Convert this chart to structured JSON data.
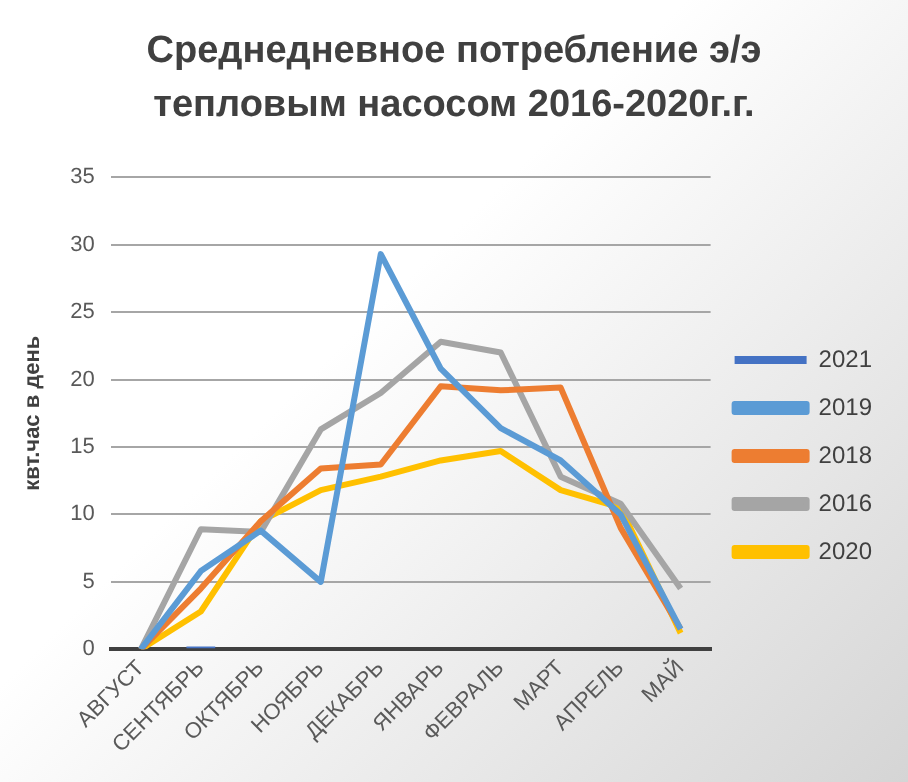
{
  "chart_data": {
    "type": "line",
    "title": "Среднедневное потребление э/э тепловым насосом 2016-2020г.г.",
    "ylabel": "квт.час в день",
    "categories": [
      "АВГУСТ",
      "СЕНТЯБРЬ",
      "ОКТЯБРЬ",
      "НОЯБРЬ",
      "ДЕКАБРЬ",
      "ЯНВАРЬ",
      "ФЕВРАЛЬ",
      "МАРТ",
      "АПРЕЛЬ",
      "МАЙ"
    ],
    "series": [
      {
        "name": "2021",
        "type": "bar",
        "color": "#4472c4",
        "values": [
          null,
          0.2,
          null,
          null,
          null,
          null,
          null,
          null,
          null,
          null
        ]
      },
      {
        "name": "2019",
        "color": "#5b9bd5",
        "values": [
          0,
          5.8,
          8.8,
          5,
          29.3,
          20.8,
          16.4,
          14,
          10,
          1.5
        ]
      },
      {
        "name": "2018",
        "color": "#ed7d31",
        "values": [
          0,
          4.5,
          9.5,
          13.4,
          13.7,
          19.5,
          19.2,
          19.4,
          9,
          1.5
        ]
      },
      {
        "name": "2016",
        "color": "#a5a5a5",
        "values": [
          0,
          8.9,
          8.7,
          16.3,
          19,
          22.8,
          22,
          12.8,
          10.8,
          4.5
        ]
      },
      {
        "name": "2020",
        "color": "#ffc000",
        "values": [
          0,
          2.8,
          9.5,
          11.8,
          12.8,
          14,
          14.7,
          11.8,
          10.5,
          1.2
        ]
      }
    ],
    "ylim": [
      0,
      35
    ],
    "yticks": [
      0,
      5,
      10,
      15,
      20,
      25,
      30,
      35
    ],
    "grid": "y",
    "legend": "right",
    "marker": "none"
  }
}
